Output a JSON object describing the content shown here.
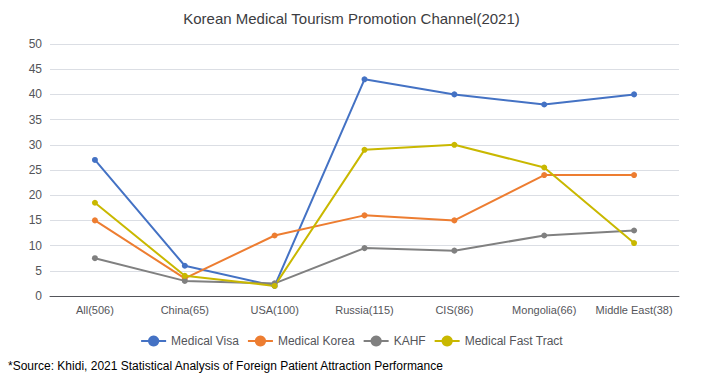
{
  "chart_data": {
    "type": "line",
    "title": "Korean Medical Tourism Promotion Channel(2021)",
    "categories": [
      "All(506)",
      "China(65)",
      "USA(100)",
      "Russia(115)",
      "CIS(86)",
      "Mongolia(66)",
      "Middle East(38)"
    ],
    "series": [
      {
        "name": "Medical Visa",
        "color": "#4472C4",
        "marker": "circle",
        "values": [
          27,
          6,
          2,
          43,
          40,
          38,
          40
        ]
      },
      {
        "name": "Medical Korea",
        "color": "#ED7D31",
        "marker": "circle",
        "values": [
          15,
          3.5,
          12,
          16,
          15,
          24,
          24
        ]
      },
      {
        "name": "KAHF",
        "color": "#808080",
        "marker": "circle",
        "values": [
          7.5,
          3,
          2.5,
          9.5,
          9,
          12,
          13
        ]
      },
      {
        "name": "Medical Fast Tract",
        "color": "#C9B800",
        "marker": "circle",
        "values": [
          18.5,
          4,
          2,
          29,
          30,
          25.5,
          10.5
        ]
      }
    ],
    "ylim": [
      0,
      50
    ],
    "yticks": [
      0,
      5,
      10,
      15,
      20,
      25,
      30,
      35,
      40,
      45,
      50
    ],
    "grid": true,
    "legend": "bottom",
    "annotations": [
      "*Source: Khidi, 2021 Statistical Analysis of Foreign Patient Attraction Performance"
    ]
  }
}
